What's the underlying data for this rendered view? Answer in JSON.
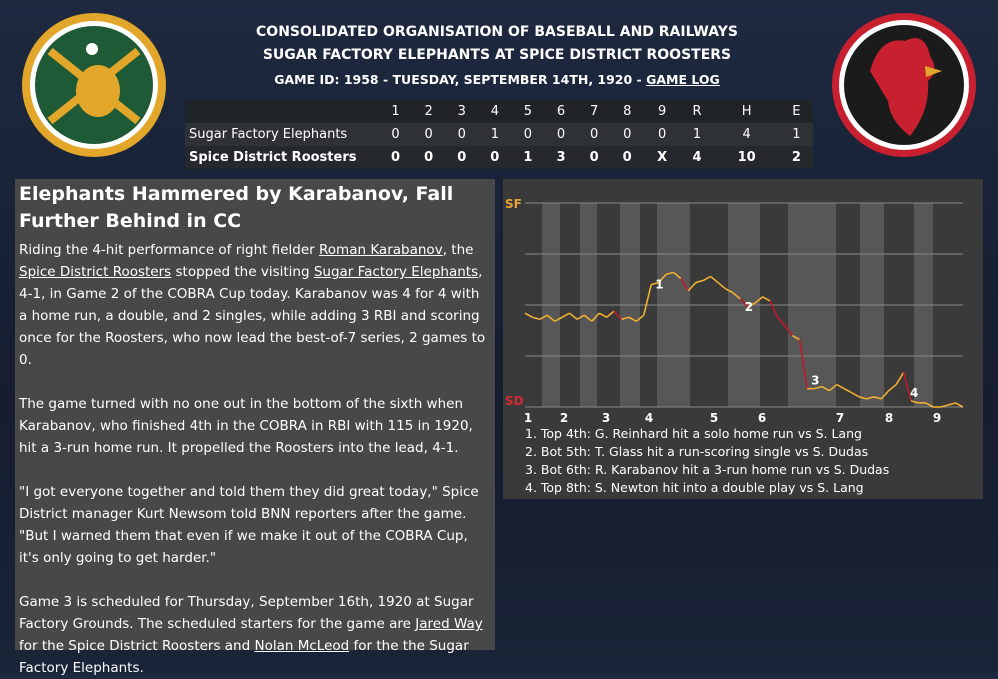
{
  "header": {
    "league": "CONSOLIDATED ORGANISATION OF BASEBALL AND RAILWAYS",
    "matchup": "SUGAR FACTORY ELEPHANTS AT SPICE DISTRICT ROOSTERS",
    "game_info": "GAME ID: 1958 - TUESDAY, SEPTEMBER 14TH, 1920 - ",
    "game_log": "GAME LOG"
  },
  "box_score": {
    "columns": [
      "1",
      "2",
      "3",
      "4",
      "5",
      "6",
      "7",
      "8",
      "9",
      "R",
      "H",
      "E"
    ],
    "rows": [
      {
        "team": "Sugar Factory Elephants",
        "values": [
          0,
          0,
          0,
          1,
          0,
          0,
          0,
          0,
          0,
          1,
          4,
          1
        ]
      },
      {
        "team": "Spice District Roosters",
        "values": [
          0,
          0,
          0,
          0,
          1,
          3,
          0,
          0,
          "X",
          4,
          10,
          2
        ]
      }
    ]
  },
  "article": {
    "headline": "Elephants Hammered by Karabanov, Fall Further Behind in CC",
    "paragraphs": [
      [
        "Riding the 4-hit performance of right fielder ",
        {
          "text": "Roman Karabanov",
          "link": true
        },
        ", the ",
        {
          "text": "Spice District Roosters",
          "link": true
        },
        " stopped the visiting ",
        {
          "text": "Sugar Factory Elephants",
          "link": true
        },
        ", 4-1, in Game 2 of the COBRA Cup today. Karabanov was 4 for 4 with a home run, a double, and 2 singles, while adding 3 RBI and scoring once for the Roosters, who now lead the best-of-7 series, 2 games to 0."
      ],
      [
        "The game turned with no one out in the bottom of the sixth when Karabanov, who finished 4th in the COBRA in RBI with 115 in 1920, hit a 3-run home run. It propelled the Roosters into the lead, 4-1."
      ],
      [
        "\"I got everyone together and told them they did great today,\" Spice District manager Kurt Newsom told BNN reporters after the game. \"But I warned them that even if we make it out of the COBRA Cup, it's only going to get harder.\""
      ],
      [
        "Game 3 is scheduled for Thursday, September 16th, 1920 at Sugar Factory Grounds. The scheduled starters for the game are ",
        {
          "text": "Jared Way",
          "link": true
        },
        " for the Spice District Roosters and ",
        {
          "text": "Nolan McLeod",
          "link": true
        },
        " for the the Sugar Factory Elephants."
      ]
    ]
  },
  "win_probability": {
    "top_label": "SF",
    "bottom_label": "SD",
    "innings": [
      1,
      2,
      3,
      4,
      5,
      6,
      7,
      8,
      9
    ],
    "values": [
      46,
      44,
      43,
      45,
      42,
      44,
      46,
      43,
      45,
      42,
      46,
      44,
      47,
      43,
      44,
      42,
      45,
      60,
      61,
      65,
      66,
      63,
      57,
      61,
      62,
      64,
      61,
      58,
      56,
      53,
      49,
      51,
      54,
      52,
      44,
      40,
      35,
      33,
      9,
      9,
      10,
      8,
      11,
      9,
      7,
      5,
      4,
      5,
      4,
      8,
      11,
      17,
      3,
      2,
      2,
      0,
      0,
      1,
      2,
      0
    ],
    "markers": [
      1,
      2,
      3,
      4
    ],
    "events": [
      "1. Top 4th: G. Reinhard hit a solo home run vs S. Lang",
      "2. Bot 5th: T. Glass hit a run-scoring single vs S. Dudas",
      "3. Bot 6th: R. Karabanov hit a 3-run home run vs S. Dudas",
      "4. Top 8th: S. Newton hit into a double play vs S. Lang"
    ]
  }
}
